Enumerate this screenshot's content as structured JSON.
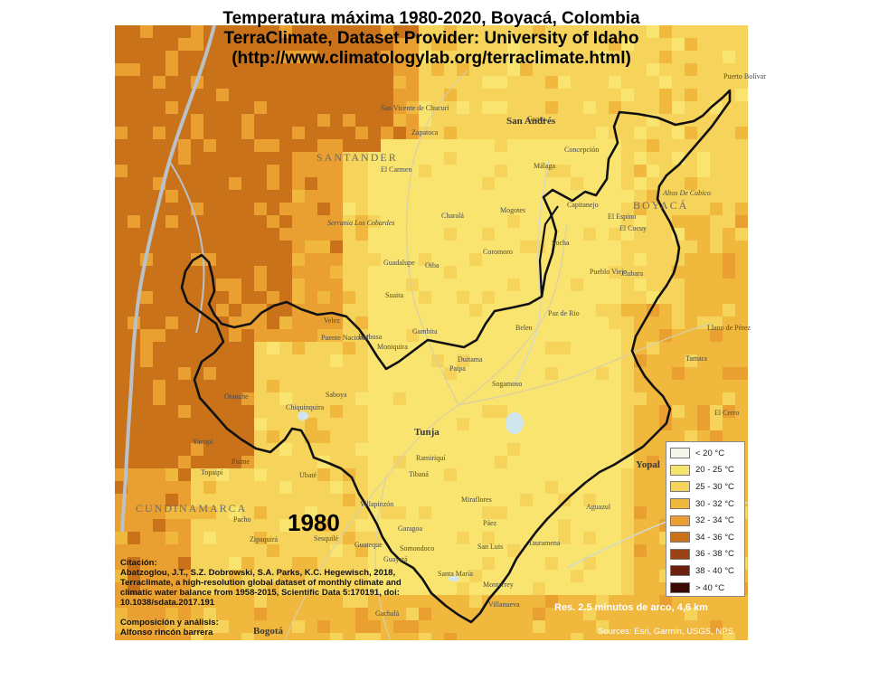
{
  "title": {
    "line1": "Temperatura máxima 1980-2020, Boyacá, Colombia",
    "line2": "TerraClimate, Dataset Provider: University of Idaho",
    "line3": "(http://www.climatologylab.org/terraclimate.html)"
  },
  "year": "1980",
  "citation": {
    "heading": "Citación:",
    "body": "Abatzoglou, J.T., S.Z. Dobrowski, S.A. Parks, K.C. Hegewisch, 2018, Terraclimate, a high-resolution global dataset of monthly climate and climatic water balance from 1958-2015, Scientific Data 5:170191, doi: 10.1038/sdata.2017.191"
  },
  "composition": {
    "heading": "Composición y análisis:",
    "author": "Alfonso rincón barrera"
  },
  "resolution": "Res. 2.5 minutos de arco, 4,6 km",
  "sources": "Sources: Esri, Garmin, USGS, NPS",
  "legend": [
    {
      "label": "< 20 °C",
      "color": "#f3f6e9"
    },
    {
      "label": "20 - 25 °C",
      "color": "#f9e46f"
    },
    {
      "label": "25 - 30 °C",
      "color": "#f6d35a"
    },
    {
      "label": "30 - 32 °C",
      "color": "#f0b83c"
    },
    {
      "label": "32 - 34 °C",
      "color": "#e9a030"
    },
    {
      "label": "34 - 36 °C",
      "color": "#c9721a"
    },
    {
      "label": "36 - 38 °C",
      "color": "#9a4214"
    },
    {
      "label": "38 - 40 °C",
      "color": "#6e1e0e"
    },
    {
      "label": "> 40 °C",
      "color": "#3a0a05"
    }
  ],
  "departments": {
    "santander": "SANTANDER",
    "boyaca": "BOYACÁ",
    "cundinamarca": "CUNDINAMARCA"
  },
  "places": {
    "tunja": "Tunja",
    "yopal": "Yopal",
    "bogota": "Bogotá",
    "san_andres": "San Andrés",
    "altos": "Altos De Cubico",
    "serrania": "Serranía Los Cobardes",
    "san_vicente": "San Vicente de Chucurí",
    "zapatoca": "Zapatoca",
    "guaca": "Guaca",
    "concepcion": "Concepción",
    "malaga": "Málaga",
    "capitanejo": "Capitanejo",
    "el_espino": "El Espino",
    "el_cocuy": "El Cocuy",
    "mogotes": "Mogotes",
    "el_carmen": "El Carmen",
    "charala": "Charalá",
    "coromoro": "Coromoro",
    "guadalupe": "Guadalupe",
    "oiba": "Oiba",
    "suaita": "Suaita",
    "velez": "Velez",
    "puente_nacional": "Puente Nacional",
    "barbosa": "Barbosa",
    "moniquira": "Moniquira",
    "gambita": "Gambita",
    "duitama": "Duitama",
    "paipa": "Paipa",
    "belen": "Belen",
    "paz_de_rio": "Paz de Rio",
    "socha": "Socha",
    "pueblo_viejo": "Pueblo Viejo",
    "cubara": "Cubara",
    "sogamoso": "Sogamoso",
    "saboya": "Saboya",
    "chiquinquira": "Chiquinquira",
    "otanche": "Otanche",
    "yacopi": "Yacopi",
    "paime": "Paime",
    "topaipi": "Topaipí",
    "ubate": "Ubaté",
    "villa_pinzon": "Villapinzón",
    "ramiriqui": "Ramiriquí",
    "tibana": "Tibaná",
    "miraflores": "Miraflores",
    "paez": "Páez",
    "garagoa": "Garagoa",
    "somondoco": "Somondoco",
    "guayata": "Guayatá",
    "santa_maria": "Santa María",
    "san_luis": "San Luis",
    "tauramena": "Tauramena",
    "aguazul": "Aguazul",
    "pacho": "Pacho",
    "zipaquira": "Zipaquirá",
    "sesquile": "Sesquilé",
    "guateque": "Guateque",
    "gachala": "Gachalá",
    "monterrey": "Monterrey",
    "villanueva": "Villanueva",
    "tamara": "Tamara",
    "el_cerro": "El Cerro",
    "llano_perez": "Llano de Pérez",
    "puerto_bolivar": "Puerto Bolívar"
  }
}
